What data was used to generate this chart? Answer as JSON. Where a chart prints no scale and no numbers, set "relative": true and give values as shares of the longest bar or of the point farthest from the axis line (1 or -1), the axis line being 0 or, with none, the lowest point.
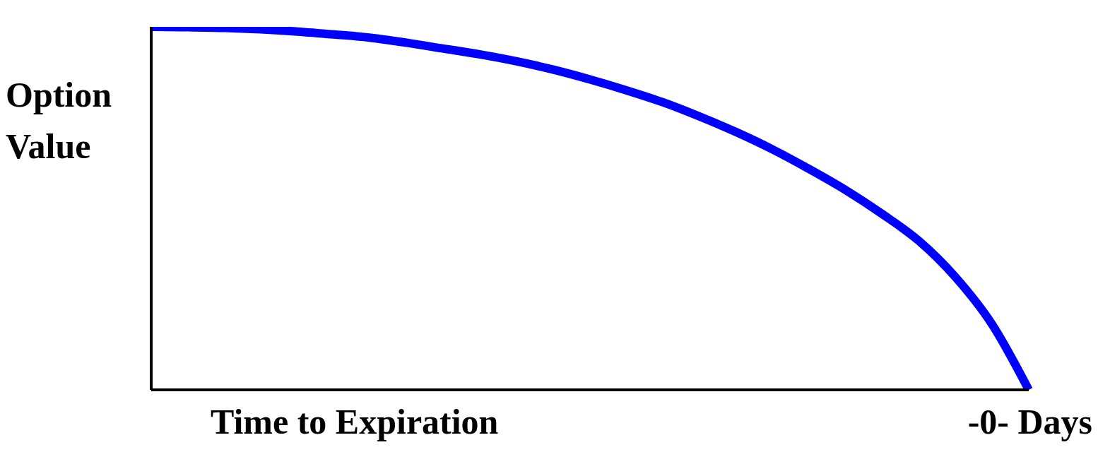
{
  "chart_data": {
    "type": "line",
    "relative": true,
    "xlabel": "Time to Expiration",
    "ylabel": "Option Value",
    "annotations": [
      "-0- Days"
    ],
    "categories": [
      null,
      null,
      null,
      null,
      null,
      null,
      null,
      null,
      null,
      null,
      null,
      null,
      null,
      null,
      null,
      null,
      null,
      null,
      null,
      null,
      null,
      null,
      null,
      null,
      null
    ],
    "series": [
      {
        "color": "#0000ff",
        "values": [
          1.0,
          0.999,
          0.997,
          0.993,
          0.987,
          0.979,
          0.97,
          0.956,
          0.94,
          0.924,
          0.905,
          0.882,
          0.855,
          0.825,
          0.792,
          0.753,
          0.71,
          0.662,
          0.608,
          0.55,
          0.484,
          0.41,
          0.31,
          0.18,
          0
        ]
      }
    ],
    "marker": "none",
    "line_style": "solid"
  }
}
